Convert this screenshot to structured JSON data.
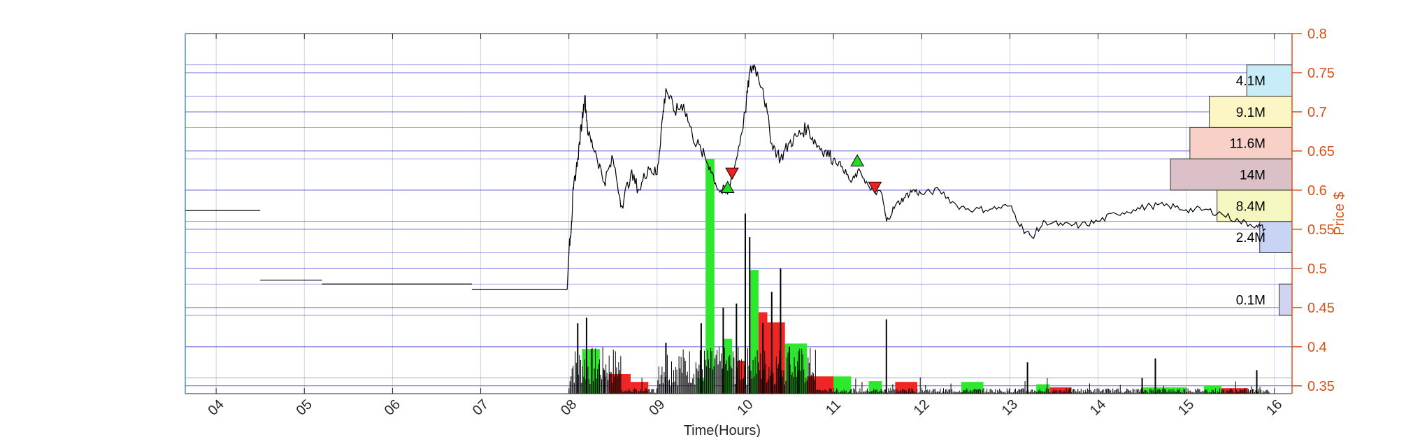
{
  "chart_data": {
    "type": "line",
    "xlabel": "Time(Hours)",
    "ylabel": "Price $",
    "x_ticks": [
      "04",
      "05",
      "06",
      "07",
      "08",
      "09",
      "10",
      "11",
      "12",
      "13",
      "14",
      "15",
      "16"
    ],
    "y_ticks": [
      "0.35",
      "0.4",
      "0.45",
      "0.5",
      "0.55",
      "0.6",
      "0.65",
      "0.7",
      "0.75",
      "0.8"
    ],
    "xlim": [
      3.65,
      16.2
    ],
    "ylim": [
      0.34,
      0.8
    ],
    "grid": true,
    "price_series": [
      [
        3.65,
        0.574
      ],
      [
        4.5,
        0.574
      ],
      [
        4.5,
        0.485
      ],
      [
        5.2,
        0.485
      ],
      [
        5.2,
        0.48
      ],
      [
        6.9,
        0.48
      ],
      [
        6.9,
        0.473
      ],
      [
        7.98,
        0.473
      ],
      [
        8.0,
        0.52
      ],
      [
        8.03,
        0.56
      ],
      [
        8.05,
        0.6
      ],
      [
        8.1,
        0.64
      ],
      [
        8.15,
        0.69
      ],
      [
        8.18,
        0.72
      ],
      [
        8.22,
        0.67
      ],
      [
        8.3,
        0.65
      ],
      [
        8.4,
        0.61
      ],
      [
        8.5,
        0.64
      ],
      [
        8.6,
        0.58
      ],
      [
        8.7,
        0.62
      ],
      [
        8.8,
        0.6
      ],
      [
        8.9,
        0.63
      ],
      [
        9.0,
        0.62
      ],
      [
        9.05,
        0.68
      ],
      [
        9.1,
        0.73
      ],
      [
        9.2,
        0.7
      ],
      [
        9.3,
        0.71
      ],
      [
        9.4,
        0.67
      ],
      [
        9.5,
        0.65
      ],
      [
        9.6,
        0.63
      ],
      [
        9.7,
        0.6
      ],
      [
        9.8,
        0.595
      ],
      [
        9.9,
        0.64
      ],
      [
        10.0,
        0.7
      ],
      [
        10.05,
        0.75
      ],
      [
        10.1,
        0.76
      ],
      [
        10.2,
        0.73
      ],
      [
        10.3,
        0.66
      ],
      [
        10.4,
        0.64
      ],
      [
        10.5,
        0.66
      ],
      [
        10.6,
        0.67
      ],
      [
        10.7,
        0.68
      ],
      [
        10.8,
        0.66
      ],
      [
        10.9,
        0.65
      ],
      [
        11.0,
        0.64
      ],
      [
        11.1,
        0.63
      ],
      [
        11.2,
        0.61
      ],
      [
        11.3,
        0.625
      ],
      [
        11.42,
        0.6
      ],
      [
        11.55,
        0.595
      ],
      [
        11.6,
        0.56
      ],
      [
        11.7,
        0.58
      ],
      [
        11.8,
        0.59
      ],
      [
        11.9,
        0.6
      ],
      [
        12.0,
        0.595
      ],
      [
        12.2,
        0.6
      ],
      [
        12.4,
        0.58
      ],
      [
        12.6,
        0.575
      ],
      [
        12.8,
        0.576
      ],
      [
        13.0,
        0.58
      ],
      [
        13.15,
        0.55
      ],
      [
        13.25,
        0.54
      ],
      [
        13.4,
        0.56
      ],
      [
        13.6,
        0.555
      ],
      [
        13.8,
        0.555
      ],
      [
        14.0,
        0.56
      ],
      [
        14.2,
        0.57
      ],
      [
        14.4,
        0.575
      ],
      [
        14.6,
        0.58
      ],
      [
        14.8,
        0.58
      ],
      [
        15.0,
        0.575
      ],
      [
        15.2,
        0.575
      ],
      [
        15.4,
        0.57
      ],
      [
        15.6,
        0.56
      ],
      [
        15.8,
        0.555
      ],
      [
        15.9,
        0.55
      ]
    ],
    "buy_markers": [
      [
        9.8,
        0.603
      ],
      [
        11.27,
        0.637
      ]
    ],
    "sell_markers": [
      [
        9.85,
        0.622
      ],
      [
        11.47,
        0.604
      ]
    ],
    "volume_bars": {
      "green": [
        [
          8.15,
          8.35,
          0.397
        ],
        [
          9.45,
          9.55,
          0.36
        ],
        [
          9.55,
          9.65,
          0.38
        ],
        [
          9.55,
          9.65,
          0.64
        ],
        [
          9.75,
          9.85,
          0.41
        ],
        [
          10.05,
          10.15,
          0.498
        ],
        [
          10.45,
          10.7,
          0.404
        ],
        [
          10.7,
          11.2,
          0.362
        ],
        [
          11.4,
          11.55,
          0.356
        ],
        [
          12.45,
          12.7,
          0.355
        ],
        [
          13.3,
          13.45,
          0.352
        ],
        [
          14.5,
          15.0,
          0.348
        ],
        [
          15.2,
          15.4,
          0.35
        ]
      ],
      "red": [
        [
          8.45,
          8.7,
          0.365
        ],
        [
          8.7,
          8.9,
          0.355
        ],
        [
          9.9,
          10.0,
          0.382
        ],
        [
          10.15,
          10.25,
          0.444
        ],
        [
          10.25,
          10.45,
          0.431
        ],
        [
          10.7,
          11.0,
          0.362
        ],
        [
          11.7,
          11.95,
          0.355
        ],
        [
          13.45,
          13.7,
          0.348
        ],
        [
          15.4,
          15.7,
          0.347
        ]
      ]
    },
    "volume_spikes": [
      [
        8.1,
        0.43
      ],
      [
        8.2,
        0.437
      ],
      [
        8.4,
        0.37
      ],
      [
        9.1,
        0.405
      ],
      [
        9.5,
        0.43
      ],
      [
        9.75,
        0.45
      ],
      [
        9.9,
        0.455
      ],
      [
        10.0,
        0.57
      ],
      [
        10.05,
        0.54
      ],
      [
        10.2,
        0.43
      ],
      [
        10.3,
        0.47
      ],
      [
        10.4,
        0.5
      ],
      [
        10.5,
        0.4
      ],
      [
        10.6,
        0.37
      ],
      [
        11.6,
        0.435
      ],
      [
        13.2,
        0.38
      ],
      [
        14.5,
        0.36
      ],
      [
        14.65,
        0.385
      ],
      [
        15.8,
        0.37
      ]
    ],
    "volume_profile": [
      {
        "low": 0.44,
        "high": 0.48,
        "label": "0.1M",
        "width_frac": 0.1
      },
      {
        "low": 0.52,
        "high": 0.56,
        "label": "2.4M",
        "width_frac": 0.25
      },
      {
        "low": 0.56,
        "high": 0.6,
        "label": "8.4M",
        "width_frac": 0.58
      },
      {
        "low": 0.6,
        "high": 0.64,
        "label": "14M",
        "width_frac": 0.94
      },
      {
        "low": 0.64,
        "high": 0.68,
        "label": "11.6M",
        "width_frac": 0.79
      },
      {
        "low": 0.68,
        "high": 0.72,
        "label": "9.1M",
        "width_frac": 0.64
      },
      {
        "low": 0.72,
        "high": 0.76,
        "label": "4.1M",
        "width_frac": 0.35
      }
    ],
    "colors": {
      "price_line": "#000000",
      "grid": "#c8d6ea",
      "hline": "#6b6bdf",
      "right_axis": "#d95319",
      "left_axis": "#1f77b4",
      "vol_green": "#2ee82e",
      "vol_red": "#f02626",
      "buy_marker": "#22dd22",
      "sell_marker": "#ee2020",
      "profile_colors": [
        "#d0d4f0",
        "#c8d4f4",
        "#f4f8c0",
        "#dcc0c8",
        "#f8d0c8",
        "#fcf6c4",
        "#c8ecf8"
      ]
    }
  }
}
